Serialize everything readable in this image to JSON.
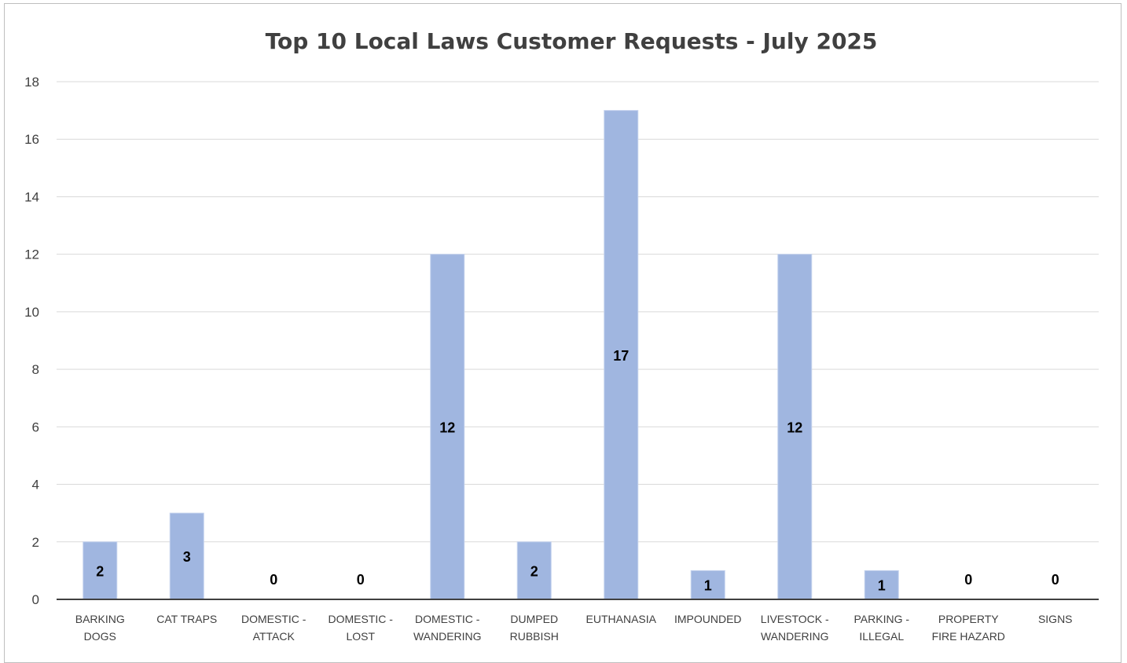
{
  "chart_data": {
    "type": "bar",
    "title": "Top 10 Local Laws Customer Requests - July 2025",
    "xlabel": "",
    "ylabel": "",
    "ylim": [
      0,
      18
    ],
    "ytick_step": 2,
    "grid": true,
    "legend": "none",
    "categories": [
      [
        "BARKING",
        "DOGS"
      ],
      [
        "CAT TRAPS"
      ],
      [
        "DOMESTIC -",
        "ATTACK"
      ],
      [
        "DOMESTIC -",
        "LOST"
      ],
      [
        "DOMESTIC -",
        "WANDERING"
      ],
      [
        "DUMPED",
        "RUBBISH"
      ],
      [
        "EUTHANASIA"
      ],
      [
        "IMPOUNDED"
      ],
      [
        "LIVESTOCK -",
        "WANDERING"
      ],
      [
        "PARKING -",
        "ILLEGAL"
      ],
      [
        "PROPERTY",
        "FIRE HAZARD"
      ],
      [
        "SIGNS"
      ]
    ],
    "values": [
      2,
      3,
      0,
      0,
      12,
      2,
      17,
      1,
      12,
      1,
      0,
      0
    ],
    "colors": {
      "bar": "#a0b6e0",
      "bar_edge": "#c4d2ee",
      "grid": "#d9d9d9",
      "axis": "#404040"
    }
  }
}
